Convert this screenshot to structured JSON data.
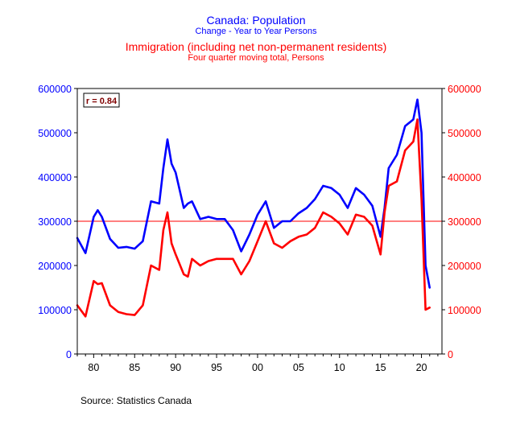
{
  "titles": {
    "title1": "Canada: Population",
    "subtitle1": "Change - Year to Year    Persons",
    "title2": "Immigration (including net non-permanent residents)",
    "subtitle2": "Four quarter moving total, Persons"
  },
  "annotation": "r = 0.84",
  "source": "Source:  Statistics Canada",
  "colors": {
    "population": "#0000ff",
    "immigration": "#ff0000",
    "reference_line": "#ff0000",
    "annotation": "#800000"
  },
  "chart_data": {
    "type": "line",
    "x": [
      1978,
      1979,
      1980,
      1980.5,
      1981,
      1982,
      1983,
      1984,
      1985,
      1986,
      1987,
      1988,
      1988.5,
      1989,
      1989.5,
      1990,
      1991,
      1991.5,
      1992,
      1993,
      1994,
      1995,
      1996,
      1997,
      1998,
      1999,
      2000,
      2001,
      2002,
      2003,
      2004,
      2005,
      2006,
      2007,
      2008,
      2009,
      2010,
      2011,
      2012,
      2013,
      2014,
      2015,
      2015.5,
      2016,
      2017,
      2018,
      2019,
      2019.5,
      2020,
      2020.5,
      2021
    ],
    "series": [
      {
        "name": "Canada: Population",
        "axis": "left",
        "values": [
          262000,
          228000,
          310000,
          325000,
          310000,
          260000,
          240000,
          242000,
          238000,
          255000,
          345000,
          340000,
          420000,
          485000,
          430000,
          410000,
          330000,
          340000,
          345000,
          305000,
          310000,
          305000,
          305000,
          280000,
          232000,
          270000,
          315000,
          345000,
          285000,
          300000,
          300000,
          318000,
          330000,
          350000,
          380000,
          375000,
          360000,
          330000,
          375000,
          360000,
          335000,
          265000,
          330000,
          420000,
          450000,
          515000,
          530000,
          575000,
          500000,
          200000,
          150000
        ]
      },
      {
        "name": "Immigration (including net non-permanent residents)",
        "axis": "right",
        "values": [
          110000,
          85000,
          165000,
          158000,
          160000,
          110000,
          95000,
          90000,
          88000,
          110000,
          200000,
          190000,
          280000,
          320000,
          250000,
          225000,
          180000,
          175000,
          215000,
          200000,
          210000,
          215000,
          215000,
          215000,
          180000,
          210000,
          255000,
          300000,
          250000,
          240000,
          255000,
          265000,
          270000,
          285000,
          320000,
          310000,
          295000,
          270000,
          315000,
          310000,
          290000,
          225000,
          320000,
          380000,
          390000,
          460000,
          480000,
          530000,
          350000,
          100000,
          105000
        ]
      }
    ],
    "reference_line": {
      "y": 300000,
      "axis": "left"
    },
    "xlim": [
      1978,
      2022.5
    ],
    "xticks": [
      1980,
      1985,
      1990,
      1995,
      2000,
      2005,
      2010,
      2015,
      2020
    ],
    "xtick_labels": [
      "80",
      "85",
      "90",
      "95",
      "00",
      "05",
      "10",
      "15",
      "20"
    ],
    "ylim_left": [
      0,
      600000
    ],
    "ylim_right": [
      0,
      600000
    ],
    "yticks": [
      0,
      100000,
      200000,
      300000,
      400000,
      500000,
      600000
    ],
    "ytick_labels_left": [
      "0",
      "100000",
      "200000",
      "300000",
      "400000",
      "500000",
      "600000"
    ],
    "ytick_labels_right": [
      "0",
      "100000",
      "200000",
      "300000",
      "400000",
      "500000",
      "600000"
    ],
    "grid": false,
    "legend": "none"
  }
}
